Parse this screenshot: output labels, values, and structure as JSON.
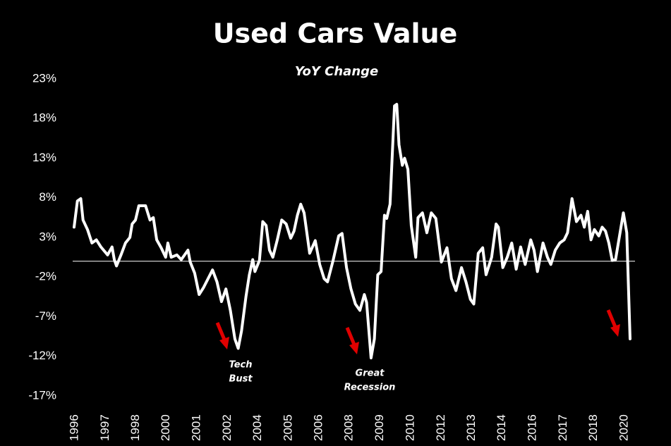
{
  "chart_data": {
    "type": "line",
    "title": "Used Cars Value",
    "subtitle": "YoY Change",
    "color": "#ffffff",
    "x": [
      1996.0,
      1996.15,
      1996.3,
      1996.4,
      1996.6,
      1996.8,
      1997.0,
      1997.2,
      1997.5,
      1997.7,
      1997.8,
      1997.9,
      1998.1,
      1998.3,
      1998.5,
      1998.6,
      1998.75,
      1998.9,
      1999.2,
      1999.4,
      1999.55,
      1999.7,
      1999.9,
      2000.1,
      2000.2,
      2000.35,
      2000.6,
      2000.8,
      2001.1,
      2001.2,
      2001.4,
      2001.6,
      2001.8,
      2002.0,
      2002.2,
      2002.4,
      2002.6,
      2002.8,
      2003.0,
      2003.2,
      2003.35,
      2003.5,
      2003.7,
      2003.85,
      2004.0,
      2004.1,
      2004.3,
      2004.45,
      2004.6,
      2004.75,
      2004.9,
      2005.1,
      2005.3,
      2005.5,
      2005.7,
      2005.85,
      2006.0,
      2006.15,
      2006.3,
      2006.55,
      2006.8,
      2007.0,
      2007.2,
      2007.35,
      2007.6,
      2007.85,
      2008.0,
      2008.2,
      2008.4,
      2008.6,
      2008.8,
      2009.0,
      2009.1,
      2009.3,
      2009.45,
      2009.6,
      2009.75,
      2009.9,
      2010.0,
      2010.15,
      2010.35,
      2010.45,
      2010.55,
      2010.7,
      2010.8,
      2010.95,
      2011.1,
      2011.3,
      2011.4,
      2011.6,
      2011.8,
      2012.0,
      2012.2,
      2012.45,
      2012.7,
      2012.9,
      2013.1,
      2013.35,
      2013.55,
      2013.75,
      2013.9,
      2014.1,
      2014.3,
      2014.45,
      2014.7,
      2014.9,
      2015.0,
      2015.2,
      2015.4,
      2015.6,
      2015.8,
      2016.0,
      2016.2,
      2016.45,
      2016.6,
      2016.75,
      2017.0,
      2017.2,
      2017.35,
      2017.55,
      2017.75,
      2017.95,
      2018.1,
      2018.3,
      2018.5,
      2018.7,
      2018.85,
      2019.0,
      2019.15,
      2019.3,
      2019.5,
      2019.65,
      2019.8,
      2019.95,
      2020.1,
      2020.25,
      2020.45,
      2020.6,
      2020.75,
      2020.9
    ],
    "values": [
      4.3,
      7.6,
      7.9,
      5.2,
      4,
      2.3,
      2.7,
      1.8,
      0.8,
      1.8,
      0.2,
      -0.6,
      0.8,
      2.3,
      3,
      4.7,
      5.2,
      7,
      7,
      5.2,
      5.5,
      2.7,
      1.7,
      0.5,
      2.3,
      0.5,
      0.8,
      0.2,
      1.4,
      -0.1,
      -1.5,
      -4.2,
      -3.3,
      -2.2,
      -1.1,
      -2.6,
      -5.1,
      -3.5,
      -6.2,
      -9.8,
      -11,
      -8.8,
      -4.4,
      -1.7,
      0.2,
      -1.3,
      0.1,
      5,
      4.5,
      1.4,
      0.5,
      2.7,
      5.2,
      4.7,
      2.9,
      3.8,
      5.8,
      7.2,
      6.1,
      1,
      2.6,
      -0.4,
      -2.2,
      -2.6,
      0.1,
      3.2,
      3.5,
      -0.8,
      -3.5,
      -5.4,
      -6.2,
      -4.2,
      -5.2,
      -12.2,
      -9.8,
      -1.7,
      -1.3,
      5.8,
      5.4,
      7.2,
      19.6,
      19.8,
      14.7,
      12.1,
      13,
      11.6,
      4.5,
      0.5,
      5.5,
      6.1,
      3.6,
      6.1,
      5.4,
      -0.1,
      1.7,
      -2.2,
      -3.7,
      -0.8,
      -2.6,
      -4.8,
      -5.4,
      1,
      1.7,
      -1.7,
      0.5,
      4.7,
      4.3,
      -0.8,
      0.5,
      2.3,
      -1,
      1.8,
      -0.4,
      2.7,
      1.4,
      -1.3,
      2.3,
      0.5,
      -0.4,
      1.4,
      2.3,
      2.7,
      3.6,
      7.9,
      5,
      5.8,
      4.3,
      6.3,
      2.7,
      4,
      3.2,
      4.3,
      3.8,
      2.3,
      0.1,
      0.2,
      3.6,
      6.1,
      3.6,
      -9.8
    ],
    "xlim": [
      1996,
      2020.9
    ],
    "xticks": [
      {
        "value": 1996,
        "label": "1996"
      },
      {
        "value": 1997.37,
        "label": "1997"
      },
      {
        "value": 1998.73,
        "label": "1998"
      },
      {
        "value": 2000.1,
        "label": "2000"
      },
      {
        "value": 2001.47,
        "label": "2001"
      },
      {
        "value": 2002.84,
        "label": "2002"
      },
      {
        "value": 2004.2,
        "label": "2004"
      },
      {
        "value": 2005.57,
        "label": "2005"
      },
      {
        "value": 2006.94,
        "label": "2006"
      },
      {
        "value": 2008.3,
        "label": "2008"
      },
      {
        "value": 2009.67,
        "label": "2009"
      },
      {
        "value": 2011.04,
        "label": "2010"
      },
      {
        "value": 2012.41,
        "label": "2012"
      },
      {
        "value": 2013.77,
        "label": "2013"
      },
      {
        "value": 2015.14,
        "label": "2014"
      },
      {
        "value": 2016.51,
        "label": "2016"
      },
      {
        "value": 2017.88,
        "label": "2017"
      },
      {
        "value": 2019.24,
        "label": "2018"
      },
      {
        "value": 2020.61,
        "label": "2020"
      }
    ],
    "ylim": [
      -17,
      23
    ],
    "yticks": [
      {
        "value": 23,
        "label": "23%"
      },
      {
        "value": 18,
        "label": "18%"
      },
      {
        "value": 13,
        "label": "13%"
      },
      {
        "value": 8,
        "label": "8%"
      },
      {
        "value": 3,
        "label": "3%"
      },
      {
        "value": -2,
        "label": "-2%"
      },
      {
        "value": -7,
        "label": "-7%"
      },
      {
        "value": -12,
        "label": "-12%"
      },
      {
        "value": -17,
        "label": "-17%"
      }
    ],
    "reference_line": 0,
    "annotations": [
      [
        "Tech",
        "Bust"
      ],
      [
        "Great",
        "Recession"
      ]
    ]
  }
}
